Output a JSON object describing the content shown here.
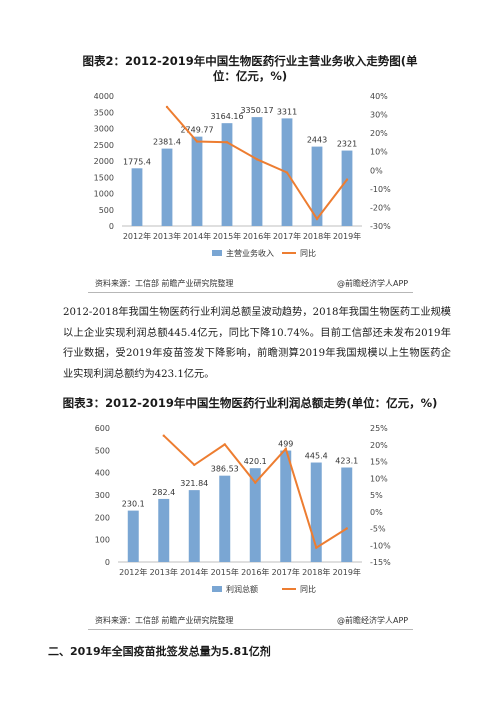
{
  "chart1": {
    "title": "图表2：2012-2019年中国生物医药行业主营业务收入走势图(单位：亿元，%)",
    "title_line1": "图表2：2012-2019年中国生物医药行业主营业务收入走势图(单",
    "title_line2": "位：亿元，%)",
    "source_left": "资料来源：工信部 前瞻产业研究院整理",
    "source_right": "@前瞻经济学人APP",
    "bar_color": "#7aa6d3",
    "line_color": "#ed7d31"
  },
  "chart2": {
    "title": "图表3：2012-2019年中国生物医药行业利润总额走势(单位：亿元，%)",
    "source_left": "资料来源：工信部 前瞻产业研究院整理",
    "source_right": "@前瞻经济学人APP",
    "bar_color": "#7aa6d3",
    "line_color": "#ed7d31"
  },
  "paragraph": "2012-2018年我国生物医药行业利润总额呈波动趋势，2018年我国生物医药工业规模以上企业实现利润总额445.4亿元，同比下降10.74%。目前工信部还未发布2019年行业数据，受2019年疫苗签发下降影响，前瞻测算2019年我国规模以上生物医药企业实现利润总额约为423.1亿元。",
  "section_heading": "二、2019年全国疫苗批签发总量为5.81亿剂",
  "chart_data": [
    {
      "type": "bar",
      "categories": [
        "2012年",
        "2013年",
        "2014年",
        "2015年",
        "2016年",
        "2017年",
        "2018年",
        "2019年"
      ],
      "series": [
        {
          "name": "主营业务收入",
          "type": "bar",
          "axis": "left",
          "values": [
            1775.4,
            2381.4,
            2749.77,
            3164.16,
            3350.17,
            3311,
            2443,
            2321
          ],
          "labels": [
            "1775.4",
            "2381.4",
            "2749.77",
            "3164.16",
            "3350.17",
            "3311",
            "2443",
            "2321"
          ]
        },
        {
          "name": "同比",
          "type": "line",
          "axis": "right",
          "values": [
            null,
            34.1,
            15.5,
            15.1,
            5.9,
            -1.2,
            -26.2,
            -5.0
          ]
        }
      ],
      "y_left": {
        "min": 0,
        "max": 4000,
        "step": 500,
        "ticks": [
          "0",
          "500",
          "1000",
          "1500",
          "2000",
          "2500",
          "3000",
          "3500",
          "4000"
        ]
      },
      "y_right": {
        "min": -30,
        "max": 40,
        "step": 10,
        "ticks": [
          "-30%",
          "-20%",
          "-10%",
          "0%",
          "10%",
          "20%",
          "30%",
          "40%"
        ]
      },
      "legend_position": "bottom",
      "grid": false
    },
    {
      "type": "bar",
      "categories": [
        "2012年",
        "2013年",
        "2014年",
        "2015年",
        "2016年",
        "2017年",
        "2018年",
        "2019年"
      ],
      "series": [
        {
          "name": "利润总额",
          "type": "bar",
          "axis": "left",
          "values": [
            230.1,
            282.4,
            321.84,
            386.53,
            420.1,
            499,
            445.4,
            423.1
          ],
          "labels": [
            "230.1",
            "282.4",
            "321.84",
            "386.53",
            "420.1",
            "499",
            "445.4",
            "423.1"
          ]
        },
        {
          "name": "同比",
          "type": "line",
          "axis": "right",
          "values": [
            null,
            22.7,
            14.0,
            20.1,
            8.7,
            18.8,
            -10.74,
            -5.0
          ]
        }
      ],
      "y_left": {
        "min": 0,
        "max": 600,
        "step": 100,
        "ticks": [
          "0",
          "100",
          "200",
          "300",
          "400",
          "500",
          "600"
        ]
      },
      "y_right": {
        "min": -15,
        "max": 25,
        "step": 5,
        "ticks": [
          "-15%",
          "-10%",
          "-5%",
          "0%",
          "5%",
          "10%",
          "15%",
          "20%",
          "25%"
        ]
      },
      "legend_position": "bottom",
      "grid": false
    }
  ]
}
